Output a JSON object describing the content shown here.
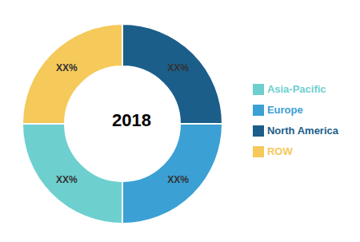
{
  "chart_data": {
    "type": "pie",
    "categories": [
      "North America",
      "Europe",
      "Asia-Pacific",
      "ROW"
    ],
    "values": [
      25,
      25,
      25,
      25
    ],
    "value_labels": [
      "XX%",
      "XX%",
      "XX%",
      "XX%"
    ],
    "colors": [
      "#1b5e8a",
      "#3ba0d4",
      "#6ecfcf",
      "#f5c95a"
    ],
    "data_labels": true,
    "legend": "right",
    "annotations": [
      "2018"
    ]
  }
}
